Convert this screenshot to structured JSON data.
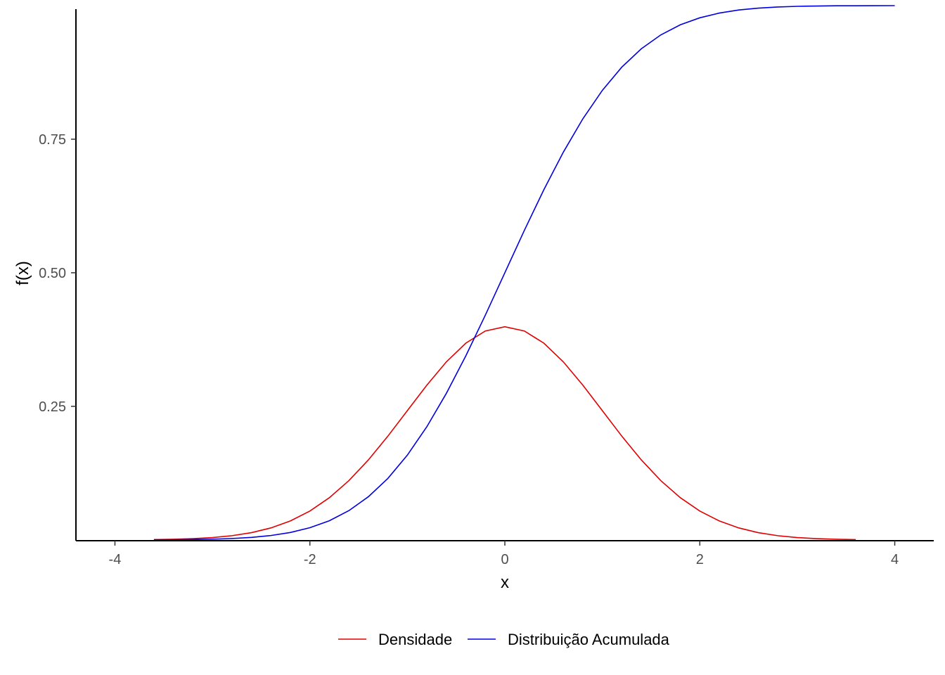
{
  "chart_data": {
    "type": "line",
    "xlabel": "x",
    "ylabel": "f(x)",
    "xlim": [
      -4.4,
      4.4
    ],
    "ylim": [
      -0.0015,
      1.0
    ],
    "x_ticks": [
      -4,
      -2,
      0,
      2,
      4
    ],
    "x_tick_labels": [
      "-4",
      "-2",
      "0",
      "2",
      "4"
    ],
    "y_ticks": [
      0.25,
      0.5,
      0.75
    ],
    "y_tick_labels": [
      "0.25",
      "0.50",
      "0.75"
    ],
    "grid": false,
    "legend_position": "bottom",
    "series": [
      {
        "name": "Densidade",
        "color": "#e00000",
        "x": [
          -3.6,
          -3.4,
          -3.2,
          -3.0,
          -2.8,
          -2.6,
          -2.4,
          -2.2,
          -2.0,
          -1.8,
          -1.6,
          -1.4,
          -1.2,
          -1.0,
          -0.8,
          -0.6,
          -0.4,
          -0.2,
          0.0,
          0.2,
          0.4,
          0.6,
          0.8,
          1.0,
          1.2,
          1.4,
          1.6,
          1.8,
          2.0,
          2.2,
          2.4,
          2.6,
          2.8,
          3.0,
          3.2,
          3.4,
          3.6
        ],
        "values": [
          0.0006,
          0.0012,
          0.0024,
          0.0044,
          0.0079,
          0.0136,
          0.0224,
          0.0355,
          0.054,
          0.079,
          0.1109,
          0.1497,
          0.1942,
          0.242,
          0.2897,
          0.3332,
          0.3683,
          0.391,
          0.3989,
          0.391,
          0.3683,
          0.3332,
          0.2897,
          0.242,
          0.1942,
          0.1497,
          0.1109,
          0.079,
          0.054,
          0.0355,
          0.0224,
          0.0136,
          0.0079,
          0.0044,
          0.0024,
          0.0012,
          0.0006
        ]
      },
      {
        "name": "Distribuição Acumulada",
        "color": "#0000e0",
        "x": [
          -3.6,
          -3.4,
          -3.2,
          -3.0,
          -2.8,
          -2.6,
          -2.4,
          -2.2,
          -2.0,
          -1.8,
          -1.6,
          -1.4,
          -1.2,
          -1.0,
          -0.8,
          -0.6,
          -0.4,
          -0.2,
          0.0,
          0.2,
          0.4,
          0.6,
          0.8,
          1.0,
          1.2,
          1.4,
          1.6,
          1.8,
          2.0,
          2.2,
          2.4,
          2.6,
          2.8,
          3.0,
          3.2,
          3.4,
          3.6,
          3.8,
          4.0
        ],
        "values": [
          0.0002,
          0.0003,
          0.0007,
          0.0013,
          0.0026,
          0.0047,
          0.0082,
          0.0139,
          0.0228,
          0.0359,
          0.0548,
          0.0808,
          0.1151,
          0.1587,
          0.2119,
          0.2743,
          0.3446,
          0.4207,
          0.5,
          0.5793,
          0.6554,
          0.7257,
          0.7881,
          0.8413,
          0.8849,
          0.9192,
          0.9452,
          0.9641,
          0.9772,
          0.9861,
          0.9918,
          0.9953,
          0.9974,
          0.9987,
          0.9993,
          0.9997,
          0.9998,
          0.9999,
          1.0
        ]
      }
    ]
  }
}
